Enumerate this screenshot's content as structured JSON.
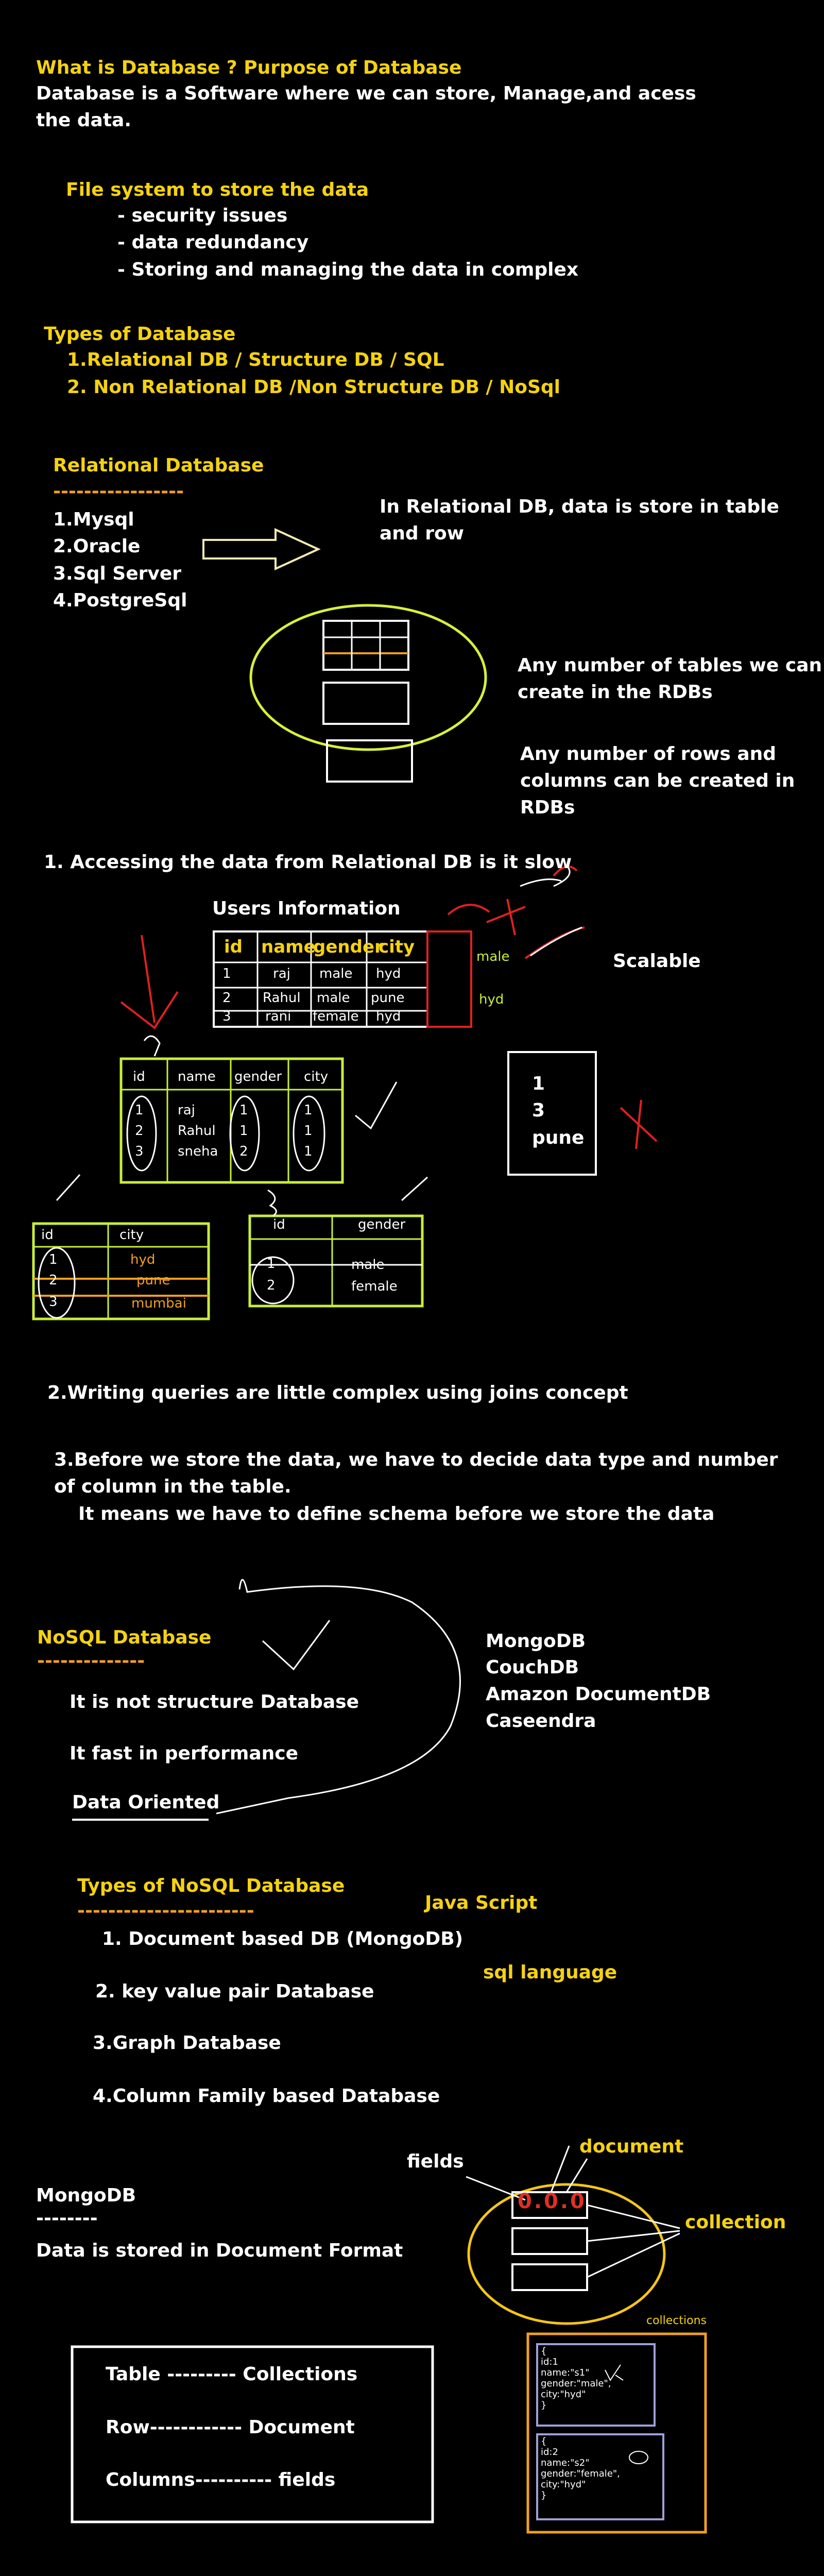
{
  "intro": {
    "title": "What is Database ? Purpose of Database",
    "line1": "Database is a Software where we can store, Manage,and acess",
    "line2": "the data."
  },
  "filesystem": {
    "heading": "File system to store the data",
    "items": [
      "- security issues",
      "- data redundancy",
      "- Storing and managing the data in complex"
    ]
  },
  "types": {
    "heading": "Types of Database",
    "item1": "1.Relational DB / Structure DB / SQL",
    "item2": "2. Non Relational DB /Non Structure DB / NoSql"
  },
  "relational": {
    "heading": "Relational Database",
    "underline": "-----------------",
    "list": [
      "1.Mysql",
      "2.Oracle",
      "3.Sql Server",
      "4.PostgreSql"
    ],
    "note1": "In Relational DB, data is store in table",
    "note2": "and row",
    "tables_note1": "Any number of tables we can",
    "tables_note2": "create in the RDBs",
    "rows_note1": "Any number of rows and",
    "rows_note2": "columns can be created in",
    "rows_note3": "RDBs"
  },
  "slow": {
    "point1": "1. Accessing the data from Relational DB is it slow",
    "users_title": "Users Information",
    "headers": [
      "id",
      "name",
      "gender",
      "city"
    ],
    "rows": [
      [
        "1",
        "raj",
        "male",
        "hyd"
      ],
      [
        "2",
        "Rahul",
        "male",
        "pune"
      ],
      [
        "3",
        "rani",
        "female",
        "hyd"
      ]
    ],
    "side_male": "male",
    "side_hyd": "hyd",
    "scalable": "Scalable",
    "box_values": [
      "1",
      "3",
      "pune"
    ]
  },
  "split": {
    "main_headers": [
      "id",
      "name",
      "gender",
      "city"
    ],
    "main_ids": [
      "1",
      "2",
      "3"
    ],
    "main_names": [
      "raj",
      "Rahul",
      "sneha"
    ],
    "main_genders": [
      "1",
      "1",
      "2"
    ],
    "main_cities": [
      "1",
      "1",
      "1"
    ],
    "city_headers": [
      "id",
      "city"
    ],
    "city_ids": [
      "1",
      "2",
      "3"
    ],
    "city_values": [
      "hyd",
      "pune",
      "mumbai"
    ],
    "gender_headers": [
      "id",
      "gender"
    ],
    "gender_ids": [
      "1",
      "2"
    ],
    "gender_values": [
      "male",
      "female"
    ]
  },
  "points": {
    "point2": "2.Writing queries are little complex using joins concept",
    "point3a": "3.Before we store the data, we have to decide data type and number",
    "point3b": "of column in the table.",
    "point3c": "It means we have to define schema before we store the data"
  },
  "nosql": {
    "heading": "NoSQL Database",
    "underline": "--------------",
    "p1": "It is not structure Database",
    "p2": "It fast in performance",
    "p3": "Data Oriented",
    "dbs": [
      "MongoDB",
      "CouchDB",
      "Amazon DocumentDB",
      "Caseendra"
    ]
  },
  "nosql_types": {
    "heading": "Types of NoSQL Database",
    "underline": "-----------------------",
    "java": "Java Script",
    "sql": "sql language",
    "items": [
      "1. Document based DB (MongoDB)",
      "2. key value pair Database",
      "3.Graph Database",
      "4.Column Family based Database"
    ]
  },
  "mongo": {
    "heading": "MongoDB",
    "underline": "--------",
    "desc": "Data is stored in Document Format",
    "fields": "fields",
    "document": "document",
    "collection": "collection",
    "doc_values": "0.0.0",
    "mapping": [
      "Table --------- Collections",
      "Row------------ Document",
      "Columns---------- fields"
    ],
    "collections_label": "collections",
    "doc1": [
      "{",
      "id:1",
      "name:\"s1\"",
      "gender:\"male\",",
      "city:\"hyd\"",
      "}"
    ],
    "doc2": [
      "{",
      "id:2",
      "name:\"s2\"",
      "gender:\"female\",",
      "city:\"hyd\"",
      "}"
    ]
  }
}
